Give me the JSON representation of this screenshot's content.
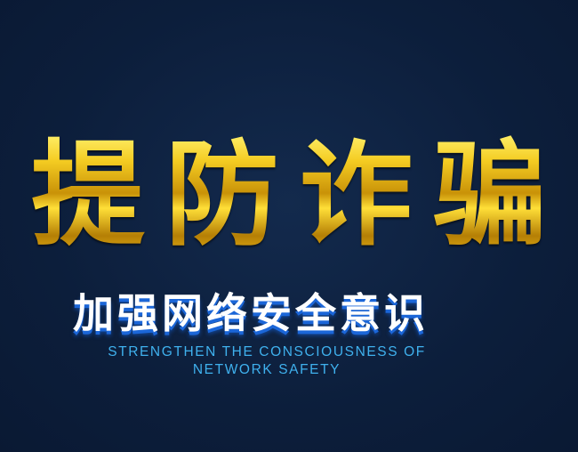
{
  "headline": {
    "chars": [
      "提",
      "防",
      "诈",
      "骗"
    ]
  },
  "subtitle_cn": "加强网络安全意识",
  "subtitle_en": {
    "line1": "STRENGTHEN THE CONSCIOUSNESS OF",
    "line2": "NETWORK SAFETY"
  },
  "colors": {
    "background": "#0d1f3d",
    "headline_gold": "#e8b818",
    "subtitle_shadow_blue": "#1b66d8",
    "english_text": "#3fb1ee"
  }
}
